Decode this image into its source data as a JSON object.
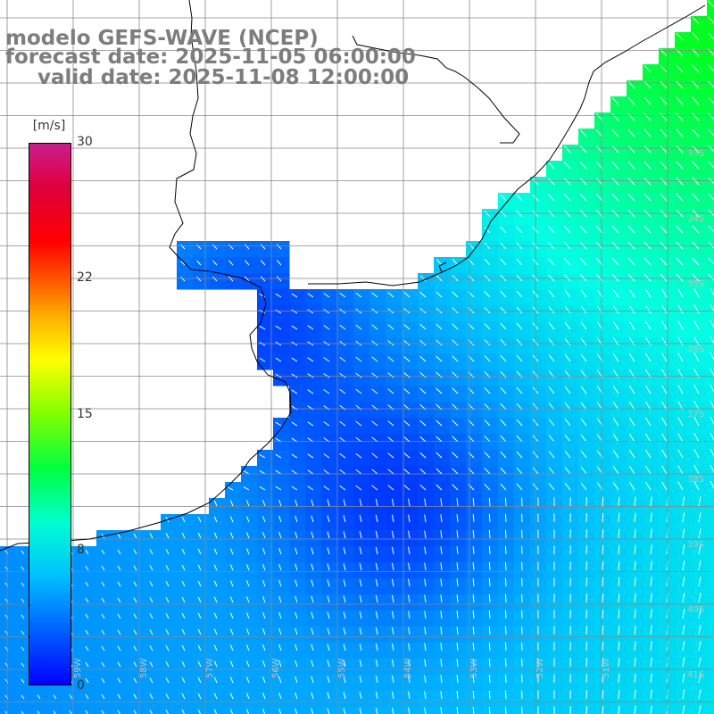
{
  "title": {
    "line1": "modelo GEFS-WAVE (NCEP)",
    "line2": "forecast date: 2025-11-05 06:00:00",
    "line3": "valid date: 2025-11-08 12:00:00"
  },
  "colorbar": {
    "unit": "[m/s]",
    "ticks": [
      "30",
      "22",
      "15",
      "8",
      "0"
    ],
    "range": [
      0,
      30
    ],
    "colors": [
      "#0000ff",
      "#00c0ff",
      "#00ff40",
      "#ffff00",
      "#ff0000",
      "#c81e8c"
    ]
  },
  "grid": {
    "lat_labels": [
      "33S",
      "34S",
      "35S",
      "36S",
      "37S",
      "38S",
      "39S",
      "40S",
      "41S"
    ],
    "lon_labels": [
      "59W",
      "58W",
      "57W",
      "56W",
      "55W",
      "54W",
      "53W",
      "52W",
      "51W"
    ]
  },
  "colors": {
    "land": "#ffffff",
    "coast": "#000000",
    "grid": "#888888",
    "arrow": "#ffffff",
    "title": "#7d7d7d"
  }
}
